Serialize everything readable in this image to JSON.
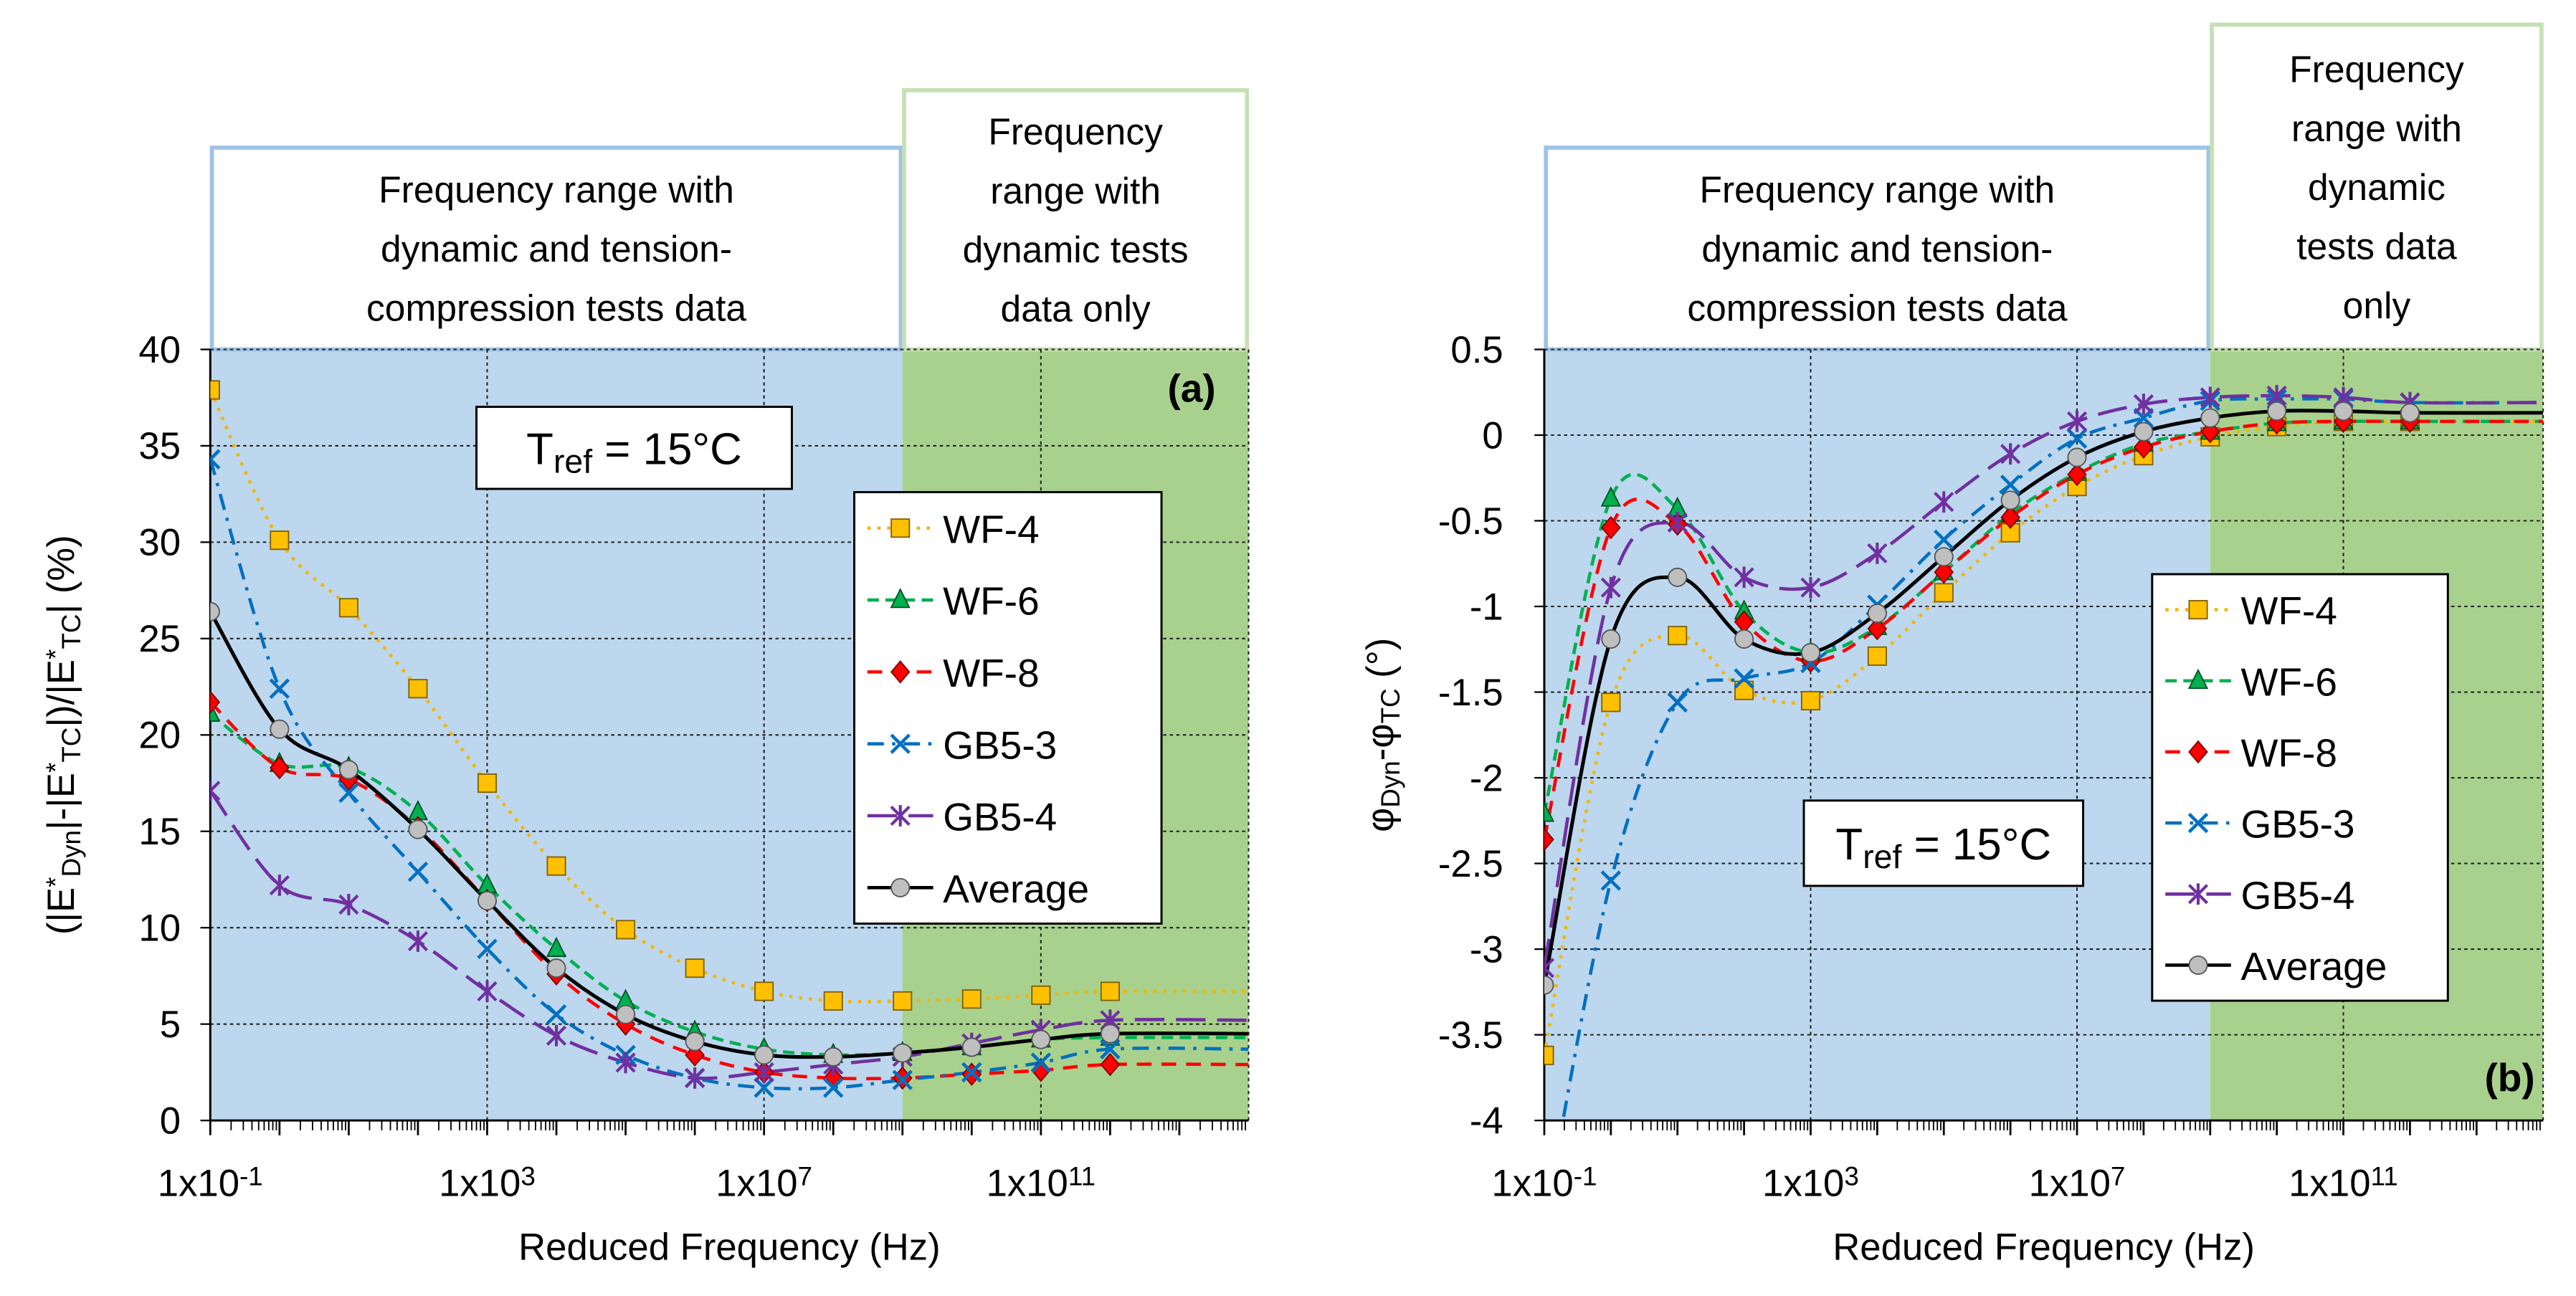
{
  "colors": {
    "blue_region": "#BDD7EE",
    "green_region": "#A9D18E",
    "blue_border": "#9DC3E6",
    "green_border": "#C5E0B4"
  },
  "series_styles": [
    {
      "name": "WF-4",
      "color": "#F2B600",
      "fill": "#FFC000",
      "marker": "square",
      "dash": "2,4"
    },
    {
      "name": "WF-6",
      "color": "#00B050",
      "fill": "#00B050",
      "marker": "triangle",
      "dash": "7,4"
    },
    {
      "name": "WF-8",
      "color": "#FF0000",
      "fill": "#FF0000",
      "marker": "diamond",
      "dash": "9,6"
    },
    {
      "name": "GB5-3",
      "color": "#0070C0",
      "fill": "#0070C0",
      "marker": "x",
      "dash": "10,5,2,5"
    },
    {
      "name": "GB5-4",
      "color": "#7030A0",
      "fill": "#7030A0",
      "marker": "asterisk",
      "dash": "18,7"
    },
    {
      "name": "Average",
      "color": "#000000",
      "fill": "#BFBFBF",
      "marker": "circle",
      "dash": ""
    }
  ],
  "chart_data": [
    {
      "id": "a",
      "type": "line",
      "panel_label": "(a)",
      "xscale": "log",
      "xlabel": "Reduced Frequency (Hz)",
      "ylabel_segments": [
        {
          "t": "(|E",
          "s": ""
        },
        {
          "t": "*",
          "s": "sup"
        },
        {
          "t": "Dyn",
          "s": "sub"
        },
        {
          "t": "|-|E",
          "s": ""
        },
        {
          "t": "*",
          "s": "sup"
        },
        {
          "t": "TC",
          "s": "sub"
        },
        {
          "t": "|)/|E",
          "s": ""
        },
        {
          "t": "*",
          "s": "sup"
        },
        {
          "t": "TC",
          "s": "sub"
        },
        {
          "t": "|    (%)",
          "s": ""
        }
      ],
      "xlim_log10": [
        -1,
        14
      ],
      "ylim": [
        0,
        40
      ],
      "yticks": [
        0,
        5,
        10,
        15,
        20,
        25,
        30,
        35,
        40
      ],
      "ytick_labels": [
        "0",
        "5",
        "10",
        "15",
        "20",
        "25",
        "30",
        "35",
        "40"
      ],
      "xticks": [
        {
          "base": "1x10",
          "exp": "-1",
          "log": -1
        },
        {
          "base": "1x10",
          "exp": "3",
          "log": 3
        },
        {
          "base": "1x10",
          "exp": "7",
          "log": 7
        },
        {
          "base": "1x10",
          "exp": "11",
          "log": 11
        }
      ],
      "grid": true,
      "regions": [
        {
          "from_log10": -1,
          "to_log10": 9,
          "kind": "blue",
          "lines": [
            "Frequency range with",
            "dynamic and tension-",
            "compression tests data"
          ]
        },
        {
          "from_log10": 9,
          "to_log10": 14,
          "kind": "green",
          "lines": [
            "Frequency",
            "range with",
            "dynamic tests",
            "data only"
          ]
        }
      ],
      "annotation": {
        "t": "T",
        "sub": "ref",
        "rest": " = 15°C"
      },
      "legend_placement": "center-right",
      "x_log10": [
        -1,
        0,
        1,
        2,
        3,
        4,
        5,
        6,
        7,
        8,
        9,
        10,
        11,
        12
      ],
      "series": [
        {
          "name": "WF-4",
          "values": [
            37.9,
            30.1,
            26.6,
            22.4,
            17.5,
            13.2,
            9.9,
            7.9,
            6.7,
            6.2,
            6.2,
            6.3,
            6.5,
            6.7
          ]
        },
        {
          "name": "WF-6",
          "values": [
            21.1,
            18.5,
            18.3,
            16.0,
            12.2,
            8.9,
            6.2,
            4.6,
            3.7,
            3.4,
            3.5,
            3.8,
            4.2,
            4.3
          ]
        },
        {
          "name": "WF-8",
          "values": [
            21.7,
            18.3,
            17.7,
            15.2,
            11.4,
            7.6,
            5.0,
            3.4,
            2.5,
            2.2,
            2.2,
            2.4,
            2.6,
            2.9
          ]
        },
        {
          "name": "GB5-3",
          "values": [
            34.3,
            22.4,
            17.0,
            12.9,
            8.9,
            5.5,
            3.4,
            2.2,
            1.7,
            1.7,
            2.1,
            2.5,
            3.0,
            3.7
          ]
        },
        {
          "name": "GB5-4",
          "values": [
            17.1,
            12.2,
            11.2,
            9.3,
            6.7,
            4.4,
            3.0,
            2.2,
            2.5,
            2.9,
            3.3,
            4.0,
            4.7,
            5.2
          ]
        },
        {
          "name": "Average",
          "values": [
            26.4,
            20.3,
            18.2,
            15.1,
            11.4,
            7.9,
            5.5,
            4.1,
            3.4,
            3.3,
            3.5,
            3.8,
            4.2,
            4.5
          ]
        }
      ]
    },
    {
      "id": "b",
      "type": "line",
      "panel_label": "(b)",
      "xscale": "log",
      "xlabel": "Reduced Frequency (Hz)",
      "ylabel_segments": [
        {
          "t": "φ",
          "s": ""
        },
        {
          "t": "Dyn",
          "s": "sub"
        },
        {
          "t": "-φ",
          "s": ""
        },
        {
          "t": "TC",
          "s": "sub"
        },
        {
          "t": " (°)",
          "s": ""
        }
      ],
      "xlim_log10": [
        -1,
        14
      ],
      "ylim": [
        -4,
        0.5
      ],
      "yticks": [
        -4,
        -3.5,
        -3,
        -2.5,
        -2,
        -1.5,
        -1,
        -0.5,
        0,
        0.5
      ],
      "ytick_labels": [
        "-4",
        "-3.5",
        "-3",
        "-2.5",
        "-2",
        "-1.5",
        "-1",
        "-0.5",
        "0",
        "0.5"
      ],
      "xticks": [
        {
          "base": "1x10",
          "exp": "-1",
          "log": -1
        },
        {
          "base": "1x10",
          "exp": "3",
          "log": 3
        },
        {
          "base": "1x10",
          "exp": "7",
          "log": 7
        },
        {
          "base": "1x10",
          "exp": "11",
          "log": 11
        }
      ],
      "grid": true,
      "regions": [
        {
          "from_log10": -1,
          "to_log10": 9,
          "kind": "blue",
          "lines": [
            "Frequency range with",
            "dynamic and tension-",
            "compression tests data"
          ]
        },
        {
          "from_log10": 9,
          "to_log10": 14,
          "kind": "green",
          "lines": [
            "Frequency",
            "range with",
            "dynamic",
            "tests data",
            "only"
          ]
        }
      ],
      "annotation": {
        "t": "T",
        "sub": "ref",
        "rest": " = 15°C"
      },
      "legend_placement": "center-right",
      "x_log10": [
        -1,
        0,
        1,
        2,
        3,
        4,
        5,
        6,
        7,
        8,
        9,
        10,
        11,
        12
      ],
      "series": [
        {
          "name": "WF-4",
          "values": [
            -3.62,
            -1.56,
            -1.17,
            -1.49,
            -1.55,
            -1.29,
            -0.92,
            -0.57,
            -0.3,
            -0.12,
            -0.01,
            0.05,
            0.08,
            0.08
          ]
        },
        {
          "name": "WF-6",
          "values": [
            -2.21,
            -0.37,
            -0.43,
            -1.03,
            -1.27,
            -1.12,
            -0.8,
            -0.46,
            -0.22,
            -0.05,
            0.02,
            0.07,
            0.08,
            0.08
          ]
        },
        {
          "name": "WF-8",
          "values": [
            -2.36,
            -0.54,
            -0.52,
            -1.09,
            -1.32,
            -1.13,
            -0.8,
            -0.48,
            -0.23,
            -0.07,
            0.02,
            0.07,
            0.08,
            0.08
          ]
        },
        {
          "name": "GB5-3",
          "values": [
            -4.6,
            -2.6,
            -1.56,
            -1.42,
            -1.33,
            -0.99,
            -0.61,
            -0.29,
            -0.02,
            0.1,
            0.2,
            0.21,
            0.21,
            0.19
          ]
        },
        {
          "name": "GB5-4",
          "values": [
            -3.11,
            -0.89,
            -0.51,
            -0.83,
            -0.89,
            -0.69,
            -0.39,
            -0.11,
            0.08,
            0.18,
            0.22,
            0.23,
            0.22,
            0.19
          ]
        },
        {
          "name": "Average",
          "values": [
            -3.21,
            -1.19,
            -0.83,
            -1.19,
            -1.27,
            -1.04,
            -0.71,
            -0.38,
            -0.13,
            0.02,
            0.1,
            0.14,
            0.14,
            0.13
          ]
        }
      ]
    }
  ]
}
